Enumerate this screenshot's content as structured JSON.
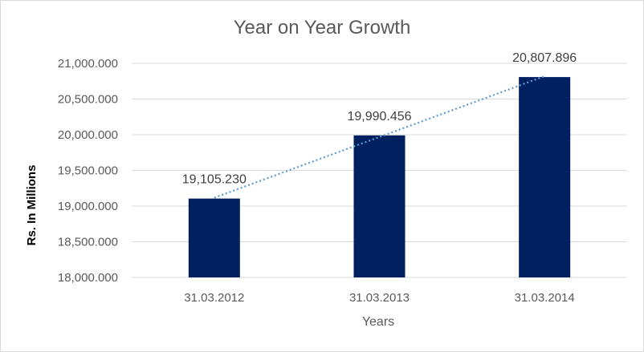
{
  "chart_data": {
    "type": "bar",
    "title": "Year on Year Growth",
    "xlabel": "Years",
    "ylabel": "Rs. In Millions",
    "categories": [
      "31.03.2012",
      "31.03.2013",
      "31.03.2014"
    ],
    "values": [
      19105.23,
      19990.456,
      20807.896
    ],
    "data_labels": [
      "19,105.230",
      "19,990.456",
      "20,807.896"
    ],
    "y_ticks": [
      18000,
      18500,
      19000,
      19500,
      20000,
      20500,
      21000
    ],
    "y_tick_labels": [
      "18,000.000",
      "18,500.000",
      "19,000.000",
      "19,500.000",
      "20,000.000",
      "20,500.000",
      "21,000.000"
    ],
    "ylim": [
      18000,
      21000
    ],
    "grid": true,
    "trendline": "linear, dotted",
    "colors": {
      "bar": "#002060",
      "trendline": "#5b9bd5",
      "grid": "#d9d9d9"
    }
  }
}
